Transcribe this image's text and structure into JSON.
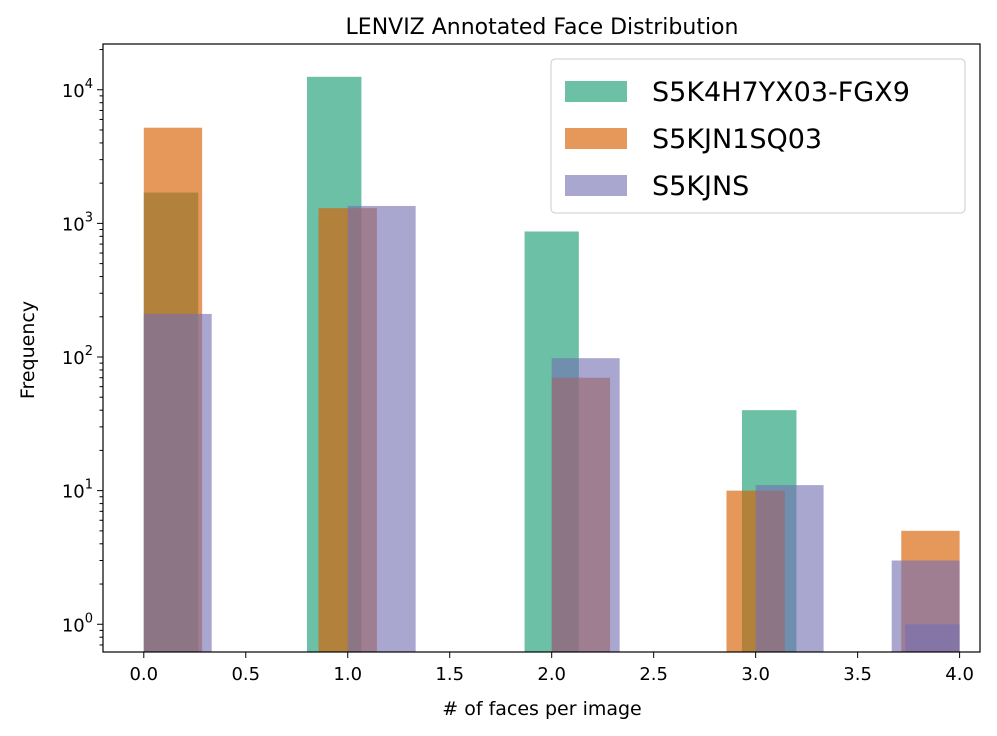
{
  "chart_data": {
    "type": "bar",
    "title": "LENVIZ Annotated Face Distribution",
    "xlabel": "# of faces per image",
    "ylabel": "Frequency",
    "xlim": [
      -0.2,
      4.1
    ],
    "ylim": [
      0.62,
      22000
    ],
    "yscale": "log",
    "legend": "upper right",
    "xticks": [
      "0.0",
      "0.5",
      "1.0",
      "1.5",
      "2.0",
      "2.5",
      "3.0",
      "3.5",
      "4.0"
    ],
    "yticks": [
      {
        "value": 1,
        "base": "10",
        "exp": "0"
      },
      {
        "value": 10,
        "base": "10",
        "exp": "1"
      },
      {
        "value": 100,
        "base": "10",
        "exp": "2"
      },
      {
        "value": 1000,
        "base": "10",
        "exp": "3"
      },
      {
        "value": 10000,
        "base": "10",
        "exp": "4"
      }
    ],
    "series": [
      {
        "name": "S5K4H7YX03-FGX9",
        "color": "#1b9e77",
        "opacity": 0.65,
        "bins": [
          {
            "x0": 0.0,
            "x1": 0.267,
            "value": 1700
          },
          {
            "x0": 0.8,
            "x1": 1.067,
            "value": 12500
          },
          {
            "x0": 1.867,
            "x1": 2.133,
            "value": 870
          },
          {
            "x0": 2.933,
            "x1": 3.2,
            "value": 40
          }
        ]
      },
      {
        "name": "S5KJN1SQ03",
        "color": "#d95f02",
        "opacity": 0.65,
        "bins": [
          {
            "x0": 0.0,
            "x1": 0.286,
            "value": 5200
          },
          {
            "x0": 0.857,
            "x1": 1.143,
            "value": 1300
          },
          {
            "x0": 2.0,
            "x1": 2.286,
            "value": 70
          },
          {
            "x0": 2.857,
            "x1": 3.143,
            "value": 10
          },
          {
            "x0": 3.714,
            "x1": 4.0,
            "value": 5
          }
        ]
      },
      {
        "name": "S5KJNS",
        "color": "#7570b3",
        "opacity": 0.62,
        "bins": [
          {
            "x0": 0.0,
            "x1": 0.333,
            "value": 210
          },
          {
            "x0": 1.0,
            "x1": 1.333,
            "value": 1350
          },
          {
            "x0": 2.0,
            "x1": 2.333,
            "value": 98
          },
          {
            "x0": 3.0,
            "x1": 3.333,
            "value": 11
          },
          {
            "x0": 3.667,
            "x1": 4.0,
            "value": 3
          }
        ]
      },
      {
        "name": "",
        "color": "#7570b3",
        "opacity": 0.62,
        "bins": [
          {
            "x0": 3.733,
            "x1": 4.0,
            "value": 1
          }
        ]
      }
    ]
  }
}
